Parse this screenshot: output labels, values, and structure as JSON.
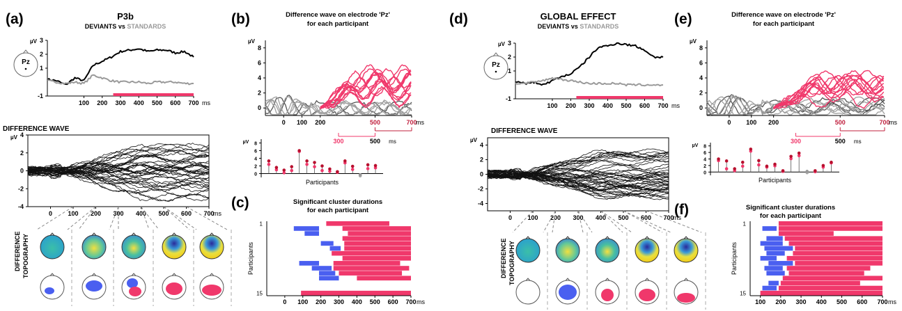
{
  "panels": {
    "a": {
      "letter": "(a)",
      "title": "P3b",
      "sub_dev": "DEVIANTS",
      "sub_vs": "vs",
      "sub_std": "STANDARDS",
      "diff_title": "DIFFERENCE WAVE",
      "topo_label_1": "DIFFERENCE",
      "topo_label_2": "TOPOGRAPHY"
    },
    "b": {
      "letter": "(b)",
      "title_1": "Difference wave on electrode 'Pz'",
      "title_2": "for each participant",
      "participants_label": "Participants"
    },
    "c": {
      "letter": "(c)",
      "title_1": "Significant cluster durations",
      "title_2": "for each participant",
      "participants_label": "Participants"
    },
    "d": {
      "letter": "(d)",
      "title": "GLOBAL EFFECT",
      "sub_dev": "DEVIANTS",
      "sub_vs": "vs",
      "sub_std": "STANDARDS",
      "diff_title": "DIFFERENCE WAVE",
      "topo_label_1": "DIFFERENCE",
      "topo_label_2": "TOPOGRAPHY"
    },
    "e": {
      "letter": "(e)",
      "title_1": "Difference wave on electrode 'Pz'",
      "title_2": "for each participant",
      "participants_label": "Participants"
    },
    "f": {
      "letter": "(f)",
      "title_1": "Significant cluster durations",
      "title_2": "for each participant",
      "participants_label": "Participants"
    }
  },
  "electrode": "Pz",
  "units": {
    "uv": "µV",
    "ms": "ms"
  },
  "colors": {
    "deviant": "#000000",
    "standard": "#9a9a9a",
    "significant": "#f0386b",
    "early_cluster": "#4a5ff0",
    "waves": "#111111"
  },
  "chart_data": [
    {
      "id": "a-erp",
      "type": "line",
      "title": "P3b",
      "xlabel": "ms",
      "ylabel": "µV",
      "xticks": [
        100,
        200,
        300,
        400,
        500,
        600,
        700
      ],
      "yticks": [
        -1,
        1,
        2,
        3
      ],
      "xlim": [
        -100,
        700
      ],
      "ylim": [
        -1,
        3
      ],
      "series": [
        {
          "name": "DEVIANTS",
          "x": [
            -100,
            -50,
            0,
            50,
            100,
            150,
            200,
            250,
            300,
            350,
            400,
            450,
            500,
            550,
            600,
            650,
            700
          ],
          "y": [
            0.2,
            0.1,
            -0.2,
            0.3,
            0.1,
            1.2,
            1.5,
            1.8,
            2.2,
            2.3,
            2.4,
            2.2,
            2.3,
            2.3,
            2.1,
            2.2,
            1.8
          ]
        },
        {
          "name": "STANDARDS",
          "x": [
            -100,
            -50,
            0,
            50,
            100,
            150,
            200,
            250,
            300,
            350,
            400,
            450,
            500,
            550,
            600,
            650,
            700
          ],
          "y": [
            0.1,
            0.0,
            -0.1,
            0.0,
            -0.1,
            0.5,
            0.3,
            0.1,
            0.0,
            0.0,
            0.0,
            -0.1,
            0.0,
            0.0,
            0.0,
            -0.1,
            -0.1
          ]
        }
      ],
      "significant_window": [
        260,
        700
      ]
    },
    {
      "id": "a-diff",
      "type": "line",
      "title": "DIFFERENCE WAVE",
      "xlabel": "ms",
      "ylabel": "µV",
      "xticks": [
        0,
        100,
        200,
        300,
        400,
        500,
        600,
        700
      ],
      "yticks": [
        -4,
        -2,
        0,
        2,
        4
      ],
      "xlim": [
        -100,
        700
      ],
      "ylim": [
        -4,
        4
      ],
      "n_waves": 40
    },
    {
      "id": "b-pz",
      "type": "line",
      "title": "Difference wave on electrode 'Pz'",
      "xlabel": "ms",
      "ylabel": "µV",
      "xticks": [
        0,
        100,
        200,
        500,
        700
      ],
      "yticks": [
        0,
        2,
        4,
        6,
        8
      ],
      "xlim": [
        -100,
        700
      ],
      "ylim": [
        -1,
        9
      ],
      "windows": [
        {
          "from": 300,
          "to": 500
        },
        {
          "from": 500,
          "to": 700
        }
      ],
      "n_red": 13,
      "n_grey": 2
    },
    {
      "id": "b-stems",
      "type": "scatter",
      "xlabel": "Participants",
      "ylabel": "µV",
      "yticks": [
        0,
        2,
        4,
        6,
        8
      ],
      "series": [
        {
          "name": "300-500",
          "values": [
            2.4,
            1.0,
            0.2,
            0.8,
            5.8,
            2.4,
            1.8,
            0.8,
            0.6,
            0.3,
            2.8,
            1.1,
            -0.6,
            1.3,
            1.5
          ]
        },
        {
          "name": "500-700",
          "values": [
            3.3,
            1.6,
            0.9,
            1.8,
            6.0,
            3.3,
            2.9,
            2.0,
            1.2,
            0.5,
            3.3,
            1.9,
            -0.3,
            2.3,
            2.1
          ]
        }
      ]
    },
    {
      "id": "c-durations",
      "type": "bar",
      "title": "Significant cluster durations",
      "xlabel": "ms",
      "ylabel": "Participants",
      "xticks": [
        0,
        100,
        200,
        300,
        400,
        500,
        600,
        700
      ],
      "ytick_labels": [
        "1",
        "15"
      ],
      "participants": [
        {
          "blue": [],
          "red": [
            [
              230,
              580
            ]
          ]
        },
        {
          "blue": [
            [
              50,
              190
            ]
          ],
          "red": [
            [
              320,
              700
            ]
          ]
        },
        {
          "blue": [
            [
              110,
              190
            ]
          ],
          "red": [
            [
              350,
              700
            ]
          ]
        },
        {
          "blue": [],
          "red": [
            [
              320,
              700
            ]
          ]
        },
        {
          "blue": [
            [
              200,
              270
            ]
          ],
          "red": [
            [
              330,
              700
            ]
          ]
        },
        {
          "blue": [
            [
              250,
              310
            ]
          ],
          "red": [
            [
              330,
              700
            ]
          ]
        },
        {
          "blue": [],
          "red": [
            [
              260,
              700
            ]
          ]
        },
        {
          "blue": [],
          "red": [
            [
              320,
              700
            ]
          ]
        },
        {
          "blue": [
            [
              80,
              190
            ]
          ],
          "red": [
            [
              270,
              640
            ]
          ]
        },
        {
          "blue": [
            [
              150,
              260
            ]
          ],
          "red": [
            [
              270,
              690
            ]
          ]
        },
        {
          "blue": [
            [
              190,
              280
            ]
          ],
          "red": [
            [
              300,
              650
            ]
          ]
        },
        {
          "blue": [
            [
              190,
              300
            ]
          ],
          "red": [
            [
              400,
              700
            ]
          ]
        },
        {
          "blue": [],
          "red": []
        },
        {
          "blue": [],
          "red": []
        },
        {
          "blue": [],
          "red": [
            [
              90,
              700
            ]
          ]
        }
      ]
    },
    {
      "id": "d-erp",
      "type": "line",
      "title": "GLOBAL EFFECT",
      "xlabel": "ms",
      "ylabel": "µV",
      "xticks": [
        100,
        200,
        300,
        400,
        500,
        600,
        700
      ],
      "yticks": [
        -1,
        1,
        2,
        3
      ],
      "xlim": [
        -100,
        700
      ],
      "ylim": [
        -1,
        3
      ],
      "series": [
        {
          "name": "DEVIANTS",
          "x": [
            -100,
            -50,
            0,
            50,
            100,
            150,
            200,
            250,
            300,
            350,
            400,
            450,
            500,
            550,
            600,
            650,
            700
          ],
          "y": [
            0.2,
            0.1,
            0.2,
            0.0,
            0.3,
            0.6,
            0.8,
            1.3,
            2.0,
            2.7,
            2.8,
            3.0,
            2.9,
            2.8,
            2.5,
            2.0,
            2.0
          ]
        },
        {
          "name": "STANDARDS",
          "x": [
            -100,
            -50,
            0,
            50,
            100,
            150,
            200,
            250,
            300,
            350,
            400,
            450,
            500,
            550,
            600,
            650,
            700
          ],
          "y": [
            0.1,
            0.1,
            0.2,
            0.3,
            0.5,
            0.4,
            0.3,
            0.2,
            0.1,
            0.1,
            0.1,
            0.1,
            0.0,
            0.0,
            0.0,
            0.0,
            0.0
          ]
        }
      ],
      "significant_window": [
        230,
        700
      ]
    },
    {
      "id": "d-diff",
      "type": "line",
      "title": "DIFFERENCE WAVE",
      "xlabel": "ms",
      "ylabel": "µV",
      "xticks": [
        0,
        100,
        200,
        300,
        400,
        500,
        600,
        700
      ],
      "yticks": [
        -4,
        -2,
        0,
        2,
        4
      ],
      "xlim": [
        -100,
        700
      ],
      "ylim": [
        -5,
        5
      ],
      "n_waves": 45
    },
    {
      "id": "e-pz",
      "type": "line",
      "title": "Difference wave on electrode 'Pz'",
      "xlabel": "ms",
      "ylabel": "µV",
      "xticks": [
        0,
        100,
        200,
        500,
        700
      ],
      "yticks": [
        0,
        2,
        4,
        6,
        8
      ],
      "xlim": [
        -100,
        700
      ],
      "ylim": [
        -1,
        9
      ],
      "windows": [
        {
          "from": 300,
          "to": 500
        },
        {
          "from": 500,
          "to": 700
        }
      ],
      "n_red": 12,
      "n_grey": 4
    },
    {
      "id": "e-stems",
      "type": "scatter",
      "xlabel": "Participants",
      "ylabel": "µV",
      "yticks": [
        0,
        2,
        4,
        6,
        8
      ],
      "series": [
        {
          "name": "300-500",
          "values": [
            3.5,
            1.0,
            0.4,
            1.8,
            6.4,
            2.2,
            1.5,
            1.9,
            0.2,
            4.1,
            5.0,
            -0.2,
            0.1,
            1.5,
            2.8
          ]
        },
        {
          "name": "500-700",
          "values": [
            4.0,
            3.4,
            1.0,
            3.0,
            7.0,
            3.5,
            1.8,
            2.4,
            0.4,
            4.8,
            5.8,
            0.2,
            0.4,
            2.0,
            3.0
          ]
        }
      ]
    },
    {
      "id": "f-durations",
      "type": "bar",
      "title": "Significant cluster durations",
      "xlabel": "ms",
      "ylabel": "Participants",
      "xticks": [
        100,
        200,
        300,
        400,
        500,
        600,
        700
      ],
      "ytick_labels": [
        "1",
        "15"
      ],
      "participants": [
        {
          "blue": [],
          "red": [
            [
              190,
              700
            ]
          ]
        },
        {
          "blue": [
            [
              110,
              180
            ]
          ],
          "red": [
            [
              190,
              700
            ]
          ]
        },
        {
          "blue": [],
          "red": [
            [
              190,
              460
            ]
          ]
        },
        {
          "blue": [
            [
              130,
              210
            ]
          ],
          "red": [
            [
              220,
              700
            ]
          ]
        },
        {
          "blue": [
            [
              100,
              210
            ]
          ],
          "red": [
            [
              240,
              700
            ]
          ]
        },
        {
          "blue": [
            [
              120,
              260
            ]
          ],
          "red": [
            [
              270,
              700
            ]
          ]
        },
        {
          "blue": [
            [
              130,
              220
            ]
          ],
          "red": [
            [
              260,
              700
            ]
          ]
        },
        {
          "blue": [
            [
              100,
              180
            ]
          ],
          "red": [
            [
              230,
              700
            ]
          ]
        },
        {
          "blue": [
            [
              140,
              260
            ]
          ],
          "red": [
            [
              270,
              700
            ]
          ]
        },
        {
          "blue": [
            [
              120,
              210
            ]
          ],
          "red": [
            [
              230,
              640
            ]
          ]
        },
        {
          "blue": [
            [
              130,
              220
            ]
          ],
          "red": [
            [
              240,
              610
            ]
          ]
        },
        {
          "blue": [],
          "red": [
            [
              210,
              700
            ]
          ]
        },
        {
          "blue": [
            [
              140,
              190
            ]
          ],
          "red": [
            [
              200,
              590
            ]
          ]
        },
        {
          "blue": [
            [
              110,
              180
            ]
          ],
          "red": [
            [
              190,
              700
            ]
          ]
        },
        {
          "blue": [],
          "red": [
            [
              100,
              700
            ]
          ]
        }
      ]
    }
  ]
}
